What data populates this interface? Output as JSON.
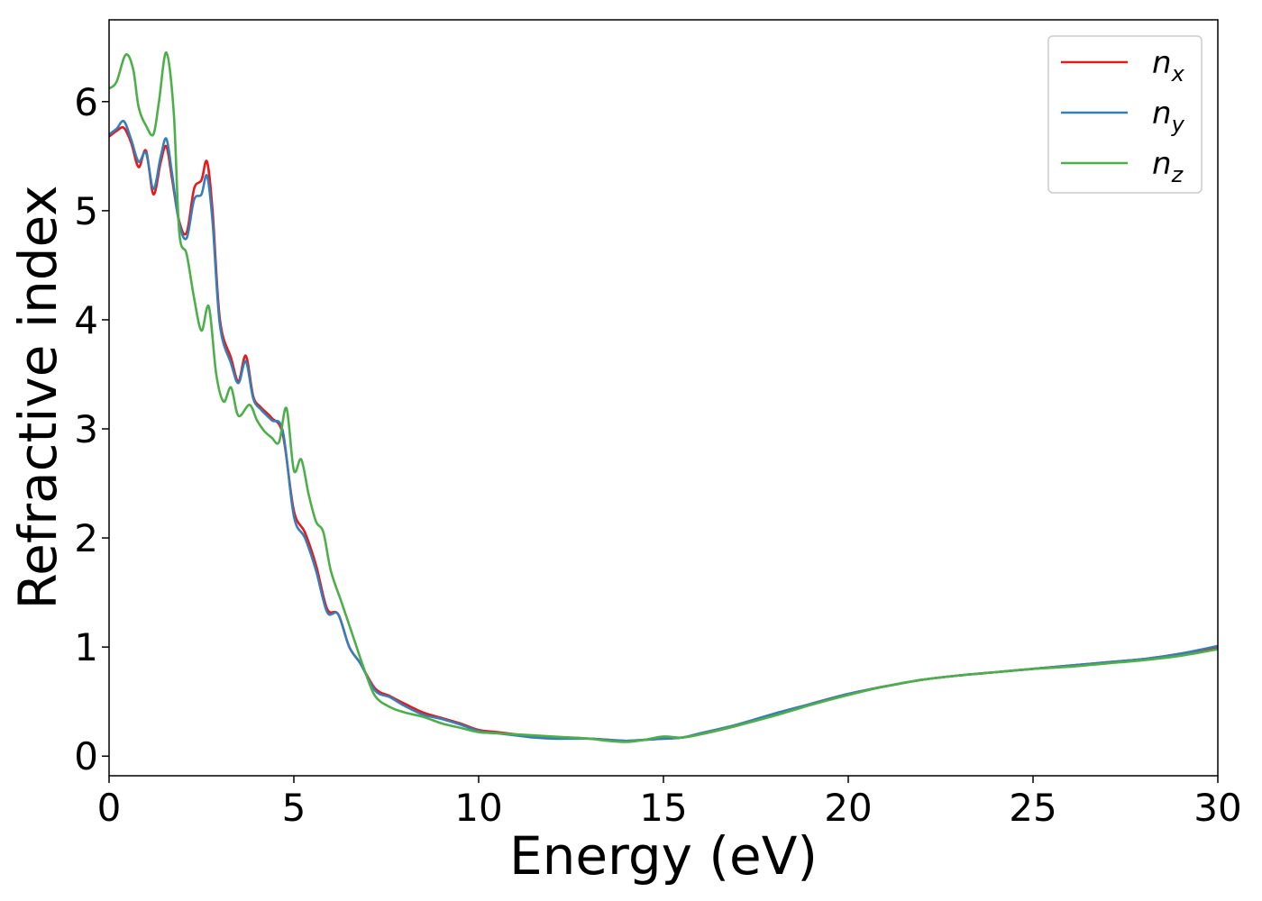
{
  "chart_data": {
    "type": "line",
    "title": "",
    "xlabel": "Energy (eV)",
    "ylabel": "Refractive index",
    "xlim": [
      0,
      30
    ],
    "ylim": [
      -0.18,
      6.75
    ],
    "xticks": [
      0,
      5,
      10,
      15,
      20,
      25,
      30
    ],
    "yticks": [
      0,
      1,
      2,
      3,
      4,
      5,
      6
    ],
    "grid": false,
    "legend_position": "top-right",
    "series": [
      {
        "name": "n_x",
        "label_base": "n",
        "label_sub": "x",
        "color": "#e41a1c",
        "x": [
          0,
          0.2,
          0.4,
          0.6,
          0.8,
          1.0,
          1.2,
          1.4,
          1.55,
          1.7,
          1.9,
          2.1,
          2.3,
          2.5,
          2.65,
          2.8,
          3.0,
          3.3,
          3.5,
          3.7,
          3.9,
          4.1,
          4.4,
          4.7,
          5.0,
          5.3,
          5.6,
          5.9,
          6.2,
          6.5,
          6.8,
          7.2,
          7.6,
          8.0,
          8.5,
          9.0,
          9.5,
          10.0,
          10.5,
          11.0,
          11.5,
          12.0,
          12.5,
          13.0,
          13.5,
          14.0,
          14.5,
          15.0,
          15.5,
          16.0,
          17.0,
          18.0,
          19.0,
          20.0,
          21.0,
          22.0,
          23.0,
          24.0,
          25.0,
          26.0,
          27.0,
          28.0,
          29.0,
          30.0
        ],
        "y": [
          5.68,
          5.73,
          5.76,
          5.62,
          5.4,
          5.55,
          5.15,
          5.45,
          5.59,
          5.3,
          4.9,
          4.8,
          5.2,
          5.28,
          5.45,
          5.0,
          4.0,
          3.65,
          3.44,
          3.67,
          3.3,
          3.2,
          3.1,
          2.95,
          2.25,
          2.05,
          1.75,
          1.35,
          1.3,
          1.0,
          0.85,
          0.62,
          0.55,
          0.48,
          0.4,
          0.35,
          0.3,
          0.24,
          0.22,
          0.2,
          0.18,
          0.17,
          0.17,
          0.16,
          0.15,
          0.14,
          0.15,
          0.16,
          0.17,
          0.2,
          0.28,
          0.38,
          0.48,
          0.57,
          0.64,
          0.7,
          0.74,
          0.77,
          0.8,
          0.83,
          0.86,
          0.89,
          0.94,
          1.0
        ]
      },
      {
        "name": "n_y",
        "label_base": "n",
        "label_sub": "y",
        "color": "#377eb8",
        "x": [
          0,
          0.2,
          0.4,
          0.6,
          0.8,
          1.0,
          1.2,
          1.4,
          1.55,
          1.7,
          1.9,
          2.1,
          2.3,
          2.5,
          2.65,
          2.8,
          3.0,
          3.3,
          3.5,
          3.7,
          3.9,
          4.1,
          4.4,
          4.7,
          5.0,
          5.3,
          5.6,
          5.9,
          6.2,
          6.5,
          6.8,
          7.2,
          7.6,
          8.0,
          8.5,
          9.0,
          9.5,
          10.0,
          10.5,
          11.0,
          11.5,
          12.0,
          12.5,
          13.0,
          13.5,
          14.0,
          14.5,
          15.0,
          15.5,
          16.0,
          17.0,
          18.0,
          19.0,
          20.0,
          21.0,
          22.0,
          23.0,
          24.0,
          25.0,
          26.0,
          27.0,
          28.0,
          29.0,
          30.0
        ],
        "y": [
          5.7,
          5.75,
          5.82,
          5.65,
          5.45,
          5.53,
          5.2,
          5.5,
          5.66,
          5.35,
          4.88,
          4.75,
          5.1,
          5.15,
          5.32,
          4.9,
          3.95,
          3.6,
          3.42,
          3.62,
          3.28,
          3.18,
          3.08,
          2.98,
          2.2,
          2.0,
          1.7,
          1.32,
          1.3,
          1.0,
          0.85,
          0.6,
          0.54,
          0.46,
          0.38,
          0.34,
          0.29,
          0.23,
          0.21,
          0.19,
          0.17,
          0.16,
          0.16,
          0.16,
          0.15,
          0.14,
          0.15,
          0.16,
          0.17,
          0.21,
          0.29,
          0.39,
          0.48,
          0.57,
          0.64,
          0.7,
          0.74,
          0.77,
          0.8,
          0.83,
          0.86,
          0.89,
          0.94,
          1.01
        ]
      },
      {
        "name": "n_z",
        "label_base": "n",
        "label_sub": "z",
        "color": "#4daf4a",
        "x": [
          0,
          0.2,
          0.45,
          0.65,
          0.8,
          1.0,
          1.2,
          1.35,
          1.55,
          1.75,
          1.9,
          2.1,
          2.3,
          2.5,
          2.7,
          2.9,
          3.1,
          3.3,
          3.5,
          3.8,
          4.0,
          4.2,
          4.4,
          4.6,
          4.8,
          5.0,
          5.2,
          5.4,
          5.6,
          5.8,
          6.0,
          6.3,
          6.6,
          6.9,
          7.2,
          7.6,
          8.0,
          8.5,
          9.0,
          9.5,
          10.0,
          10.5,
          11.0,
          11.5,
          12.0,
          12.5,
          13.0,
          13.5,
          14.0,
          14.5,
          15.0,
          15.5,
          16.0,
          17.0,
          18.0,
          19.0,
          20.0,
          21.0,
          22.0,
          23.0,
          24.0,
          25.0,
          26.0,
          27.0,
          28.0,
          29.0,
          30.0
        ],
        "y": [
          6.12,
          6.18,
          6.43,
          6.3,
          5.95,
          5.78,
          5.7,
          6.0,
          6.45,
          5.9,
          4.8,
          4.6,
          4.2,
          3.9,
          4.12,
          3.5,
          3.25,
          3.38,
          3.12,
          3.22,
          3.08,
          2.98,
          2.92,
          2.88,
          3.19,
          2.62,
          2.72,
          2.4,
          2.15,
          2.05,
          1.7,
          1.4,
          1.1,
          0.8,
          0.55,
          0.45,
          0.4,
          0.36,
          0.3,
          0.26,
          0.22,
          0.21,
          0.2,
          0.19,
          0.18,
          0.17,
          0.16,
          0.14,
          0.13,
          0.15,
          0.18,
          0.17,
          0.2,
          0.28,
          0.37,
          0.47,
          0.56,
          0.64,
          0.7,
          0.74,
          0.77,
          0.8,
          0.82,
          0.85,
          0.88,
          0.92,
          0.98
        ]
      }
    ]
  }
}
